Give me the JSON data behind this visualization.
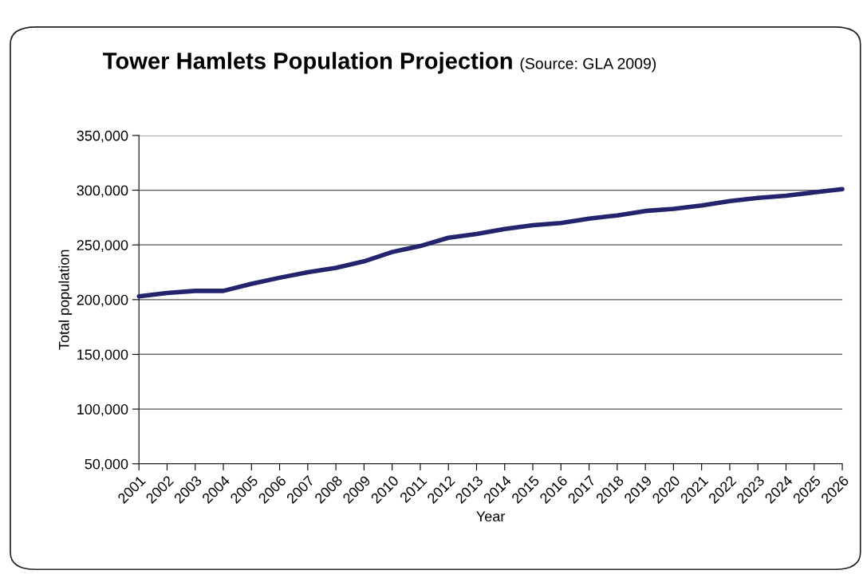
{
  "chart_data": {
    "type": "line",
    "title": "Tower Hamlets Population Projection",
    "subtitle": "(Source: GLA 2009)",
    "xlabel": "Year",
    "ylabel": "Total population",
    "categories": [
      "2001",
      "2002",
      "2003",
      "2004",
      "2005",
      "2006",
      "2007",
      "2008",
      "2009",
      "2010",
      "2011",
      "2012",
      "2013",
      "2014",
      "2015",
      "2016",
      "2017",
      "2018",
      "2019",
      "2020",
      "2021",
      "2022",
      "2023",
      "2024",
      "2025",
      "2026"
    ],
    "series": [
      {
        "color": "#23236e",
        "values": [
          203000,
          206000,
          208000,
          208000,
          214500,
          220000,
          225000,
          229000,
          235000,
          243500,
          249000,
          256500,
          260000,
          264500,
          268000,
          270000,
          274000,
          277000,
          281000,
          283000,
          286000,
          290000,
          293000,
          295000,
          298000,
          301000
        ]
      }
    ],
    "ylim": [
      50000,
      350000
    ],
    "yticks": [
      {
        "value": 50000,
        "label": "50,000"
      },
      {
        "value": 100000,
        "label": "100,000"
      },
      {
        "value": 150000,
        "label": "150,000"
      },
      {
        "value": 200000,
        "label": "200,000"
      },
      {
        "value": 250000,
        "label": "250,000"
      },
      {
        "value": 300000,
        "label": "300,000"
      },
      {
        "value": 350000,
        "label": "350,000"
      }
    ],
    "grid": "y",
    "marker": "none",
    "line_style": "solid"
  }
}
